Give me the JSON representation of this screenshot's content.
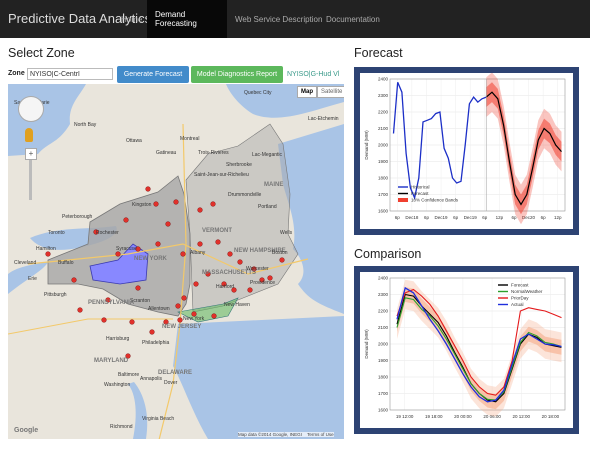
{
  "navbar": {
    "brand": "Predictive Data Analytics",
    "items": [
      {
        "label": "Home",
        "active": false
      },
      {
        "label": "Demand Forecasting",
        "active": true
      },
      {
        "label": "Web Service Description",
        "active": false
      },
      {
        "label": "Documentation",
        "active": false
      }
    ]
  },
  "select_zone": {
    "title": "Select Zone",
    "zone_label": "Zone",
    "zone_value": "NYISO|C-Centrl",
    "generate_button": "Generate Forecast",
    "diagnostics_button": "Model Diagnostics Report",
    "selected_zone": "NYISO|G-Hud Vl"
  },
  "map": {
    "map_button": "Map",
    "satellite_button": "Satellite",
    "attribution": "Map data ©2014 Google, INEGI",
    "terms": "Terms of Use",
    "google_logo": "Google",
    "places": [
      "Quebec City",
      "Lac-Etchemin",
      "Ottawa",
      "Montreal",
      "Sherbrooke",
      "Saint-Jean-sur-Richelieu",
      "MAINE",
      "Portland",
      "Syracuse",
      "Albany",
      "NEW YORK",
      "NEW HAMPSHIRE",
      "VERMONT",
      "MASSACHUSETTS",
      "Providence",
      "Boston",
      "Toronto",
      "Hamilton",
      "Buffalo",
      "Rochester",
      "Scranton",
      "New Haven",
      "Hartford",
      "New York",
      "Philadelphia",
      "Pittsburgh",
      "PENNSYLVANIA",
      "NEW JERSEY",
      "Baltimore",
      "Washington",
      "Virginia Beach",
      "North Bay",
      "Kingston",
      "Peterborough",
      "Erie",
      "Cleveland",
      "Allentown",
      "Dover",
      "DELAWARE",
      "Richmond",
      "MARYLAND",
      "Annapolis",
      "Harrisburg",
      "Gatineau",
      "Sault Ste. Marie",
      "Lac-Megantic",
      "Drummondville",
      "Trois-Rivieres",
      "Wells",
      "Worcester"
    ],
    "colors": {
      "background": "#e9e5dc",
      "water": "#a9c4e6",
      "iso_zone": "#a6a6a6",
      "selected_zone": "#8888ff",
      "marker": "#e0302a"
    }
  },
  "forecast": {
    "title": "Forecast",
    "colors": {
      "frame": "#2d4373",
      "historical": "#1c2fc7",
      "forecast": "#000000",
      "band": "#f04030"
    },
    "chart_data": {
      "type": "line",
      "title": "",
      "xlabel": "",
      "ylabel": "Demand (MW)",
      "x_ticks": [
        "6p",
        "Dec18",
        "6p",
        "Dec19",
        "6p",
        "Dec19",
        "6p",
        "12p",
        "6p",
        "Dec20",
        "6p",
        "12p"
      ],
      "y_ticks": [
        1600,
        1700,
        1800,
        1900,
        2000,
        2100,
        2200,
        2300,
        2400
      ],
      "ylim": [
        1600,
        2400
      ],
      "legend": [
        "Historical",
        "Forecast",
        "10% Confidence Bands"
      ],
      "series": [
        {
          "name": "Historical",
          "values": [
            2070,
            2380,
            2320,
            1950,
            1740,
            1680,
            1800,
            2140,
            2150,
            2160,
            2190,
            2200,
            1980,
            1920,
            1800,
            1770,
            1780,
            2000,
            2250,
            2290,
            2260,
            2280,
            2290
          ]
        },
        {
          "name": "Forecast",
          "values": [
            2290,
            2320,
            2280,
            2120,
            1900,
            1700,
            1640,
            1700,
            1860,
            2030,
            2100,
            2070,
            2000,
            1960
          ]
        }
      ]
    }
  },
  "comparison": {
    "title": "Comparison",
    "colors": {
      "frame": "#2d4373",
      "forecast": "#000000",
      "normal_weather": "#2ca02c",
      "prior_day": "#e41a1c",
      "actual": "#1f2fdd",
      "band": "#f4a582"
    },
    "chart_data": {
      "type": "line",
      "title": "",
      "xlabel": "",
      "ylabel": "Demand (MW)",
      "x_ticks": [
        "19 12:00",
        "19 18:00",
        "20 00:00",
        "20 06:00",
        "20 12:00",
        "20 18:00"
      ],
      "y_ticks": [
        1600,
        1700,
        1800,
        1900,
        2000,
        2100,
        2200,
        2300,
        2400
      ],
      "ylim": [
        1600,
        2400
      ],
      "legend": [
        "Forecast",
        "NormalWeather",
        "PriorDay",
        "Actual"
      ],
      "series": [
        {
          "name": "Forecast",
          "values": [
            2120,
            2300,
            2290,
            2230,
            2180,
            2130,
            2050,
            1950,
            1860,
            1760,
            1700,
            1660,
            1650,
            1700,
            1850,
            2000,
            2060,
            2040,
            2000,
            1990,
            1980
          ]
        },
        {
          "name": "NormalWeather",
          "values": [
            2100,
            2280,
            2270,
            2210,
            2170,
            2110,
            2030,
            1940,
            1850,
            1760,
            1700,
            1665,
            1660,
            1710,
            1860,
            2010,
            2070,
            2050,
            2010,
            2000,
            1985
          ]
        },
        {
          "name": "PriorDay",
          "values": [
            2170,
            2310,
            2330,
            2290,
            2240,
            2170,
            2080,
            1990,
            1900,
            1800,
            1740,
            1700,
            1690,
            1740,
            1900,
            2200,
            2220,
            2210,
            2200,
            2180,
            2160
          ]
        },
        {
          "name": "Actual",
          "values": [
            2150,
            2340,
            2310,
            2230,
            2150,
            2080,
            2000,
            1910,
            1820,
            1740,
            1680,
            1650,
            1660,
            1720,
            1880,
            2030,
            2060,
            2030,
            2000,
            1995,
            1985
          ]
        }
      ]
    }
  }
}
